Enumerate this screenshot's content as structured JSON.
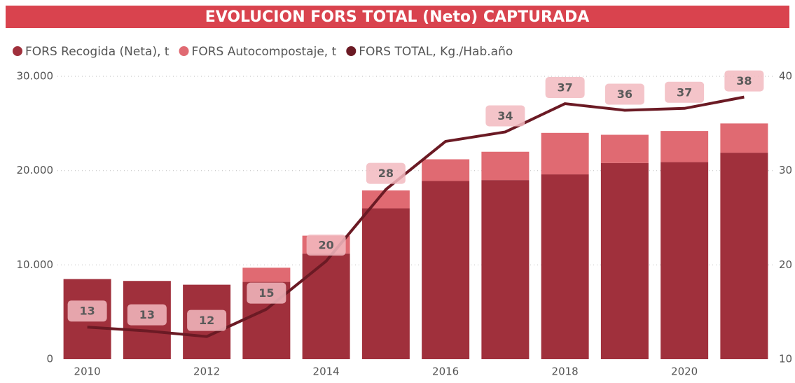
{
  "chart_data": {
    "type": "bar",
    "title": "EVOLUCION FORS TOTAL (Neto) CAPTURADA",
    "categories": [
      "2010",
      null,
      "2012",
      null,
      "2014",
      null,
      "2016",
      null,
      "2018",
      null,
      "2020",
      null
    ],
    "stacked": true,
    "series": [
      {
        "name": "FORS Recogida (Neta), t",
        "color": "#a0303c",
        "axis": "y",
        "values": [
          8500,
          8300,
          7900,
          8200,
          11200,
          16000,
          18900,
          19000,
          19600,
          20800,
          20900,
          21900
        ]
      },
      {
        "name": "FORS Autocompostaje, t",
        "color": "#e06a72",
        "axis": "y",
        "values": [
          0,
          0,
          0,
          1500,
          1900,
          1900,
          2300,
          3000,
          4400,
          3000,
          3300,
          3100
        ]
      },
      {
        "name": "FORS TOTAL, Kg./Hab.año",
        "color": "#6b1a24",
        "axis": "y2",
        "type": "line",
        "values": [
          13.4,
          13.0,
          12.4,
          15.3,
          20.4,
          28.0,
          33.1,
          34.1,
          37.1,
          36.4,
          36.6,
          37.8
        ],
        "value_labels": [
          "13",
          "13",
          "12",
          "15",
          "20",
          "28",
          null,
          "34",
          "37",
          "36",
          "37",
          "38"
        ]
      }
    ],
    "ylim": [
      0,
      30000
    ],
    "yticks": [
      0,
      {
        "value": 10000,
        "label": "10.000"
      },
      {
        "value": 20000,
        "label": "20.000"
      },
      {
        "value": 30000,
        "label": "30.000"
      }
    ],
    "y2lim": [
      10,
      40
    ],
    "y2ticks": [
      10,
      20,
      30,
      40
    ],
    "grid": true
  }
}
